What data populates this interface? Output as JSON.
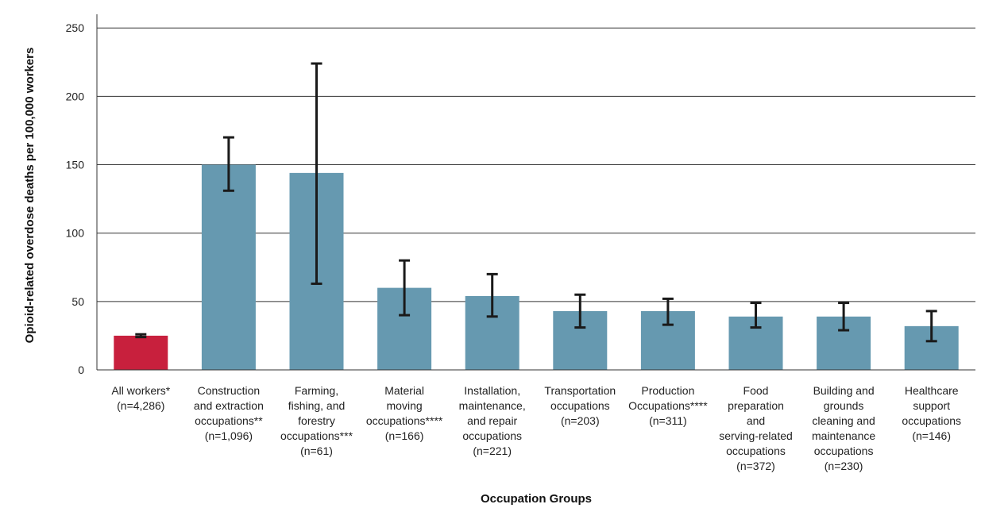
{
  "chart_data": {
    "type": "bar",
    "xlabel": "Occupation Groups",
    "ylabel": "Opioid-related overdose deaths per 100,000 workers",
    "ylim": [
      0,
      260
    ],
    "yticks": [
      0,
      50,
      100,
      150,
      200,
      250
    ],
    "grid": true,
    "categories": [
      [
        "All workers*",
        "(n=4,286)"
      ],
      [
        "Construction",
        "and extraction",
        "occupations**",
        "(n=1,096)"
      ],
      [
        "Farming,",
        "fishing, and",
        "forestry",
        "occupations***",
        "(n=61)"
      ],
      [
        "Material",
        "moving",
        "occupations****",
        "(n=166)"
      ],
      [
        "Installation,",
        "maintenance,",
        "and repair",
        "occupations",
        "(n=221)"
      ],
      [
        "Transportation",
        "occupations",
        "(n=203)"
      ],
      [
        "Production",
        "Occupations****",
        "(n=311)"
      ],
      [
        "Food",
        "preparation",
        "and",
        "serving-related",
        "occupations",
        "(n=372)"
      ],
      [
        "Building and",
        "grounds",
        "cleaning and",
        "maintenance",
        "occupations",
        "(n=230)"
      ],
      [
        "Healthcare",
        "support",
        "occupations",
        "(n=146)"
      ]
    ],
    "values": [
      25,
      150,
      144,
      60,
      54,
      43,
      43,
      39,
      39,
      32
    ],
    "ci_low": [
      24,
      131,
      63,
      40,
      39,
      31,
      33,
      31,
      29,
      21
    ],
    "ci_high": [
      26,
      170,
      224,
      80,
      70,
      55,
      52,
      49,
      49,
      43
    ],
    "colors": [
      "#c8203d",
      "#6699b0",
      "#6699b0",
      "#6699b0",
      "#6699b0",
      "#6699b0",
      "#6699b0",
      "#6699b0",
      "#6699b0",
      "#6699b0"
    ],
    "error_bar_color": "#1a1a1a",
    "grid_color": "#333333"
  }
}
